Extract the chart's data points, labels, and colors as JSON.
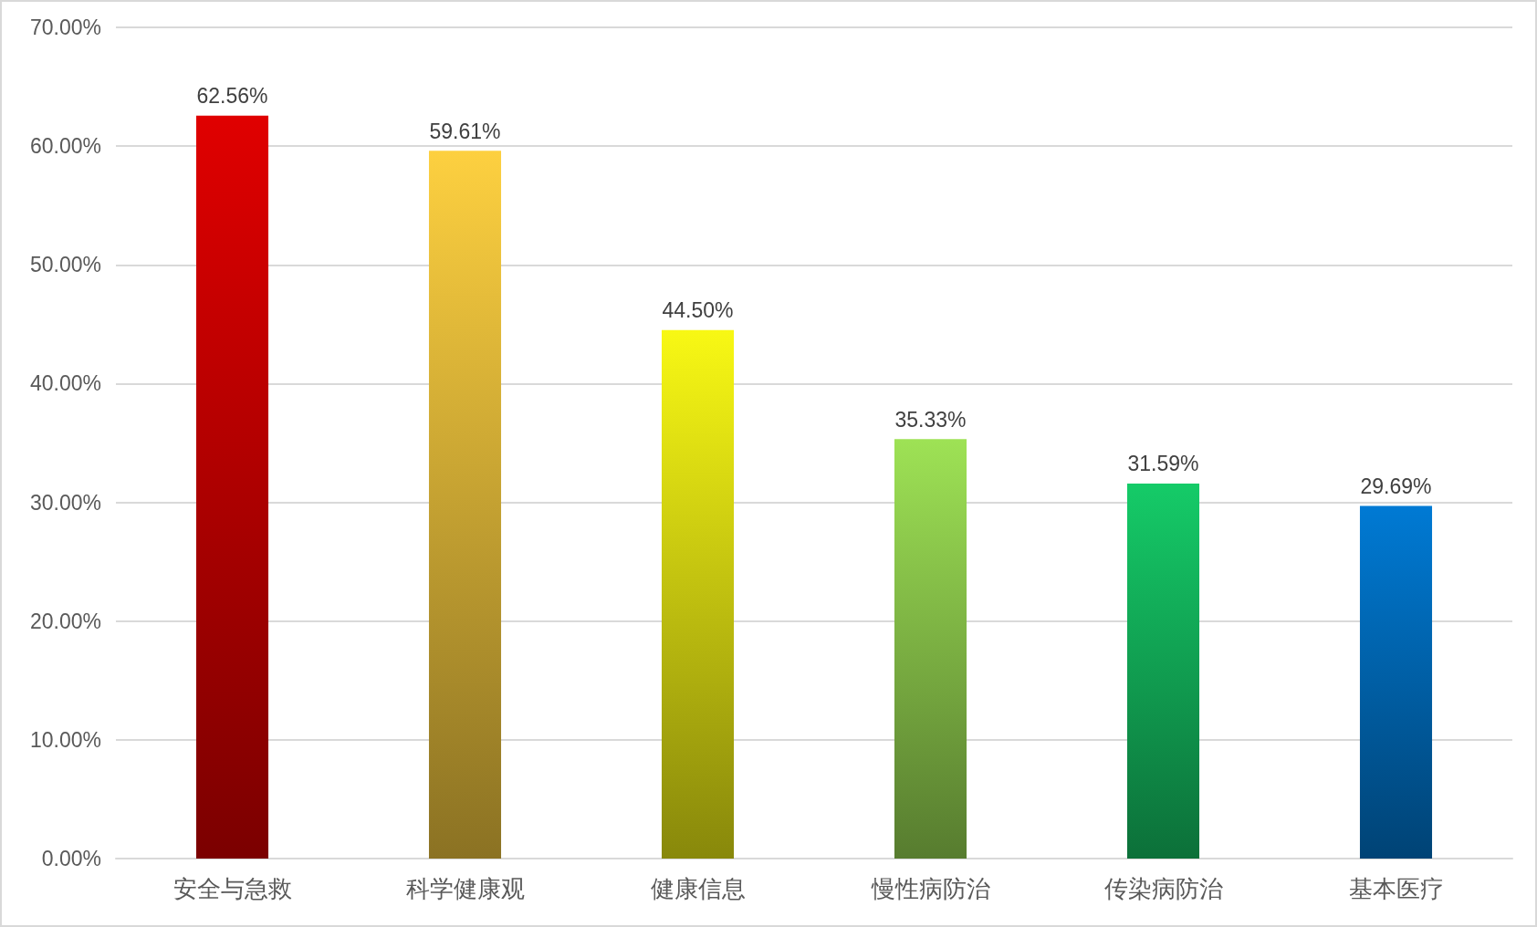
{
  "chart_data": {
    "type": "bar",
    "categories": [
      "安全与急救",
      "科学健康观",
      "健康信息",
      "慢性病防治",
      "传染病防治",
      "基本医疗"
    ],
    "values": [
      62.56,
      59.61,
      44.5,
      35.33,
      31.59,
      29.69
    ],
    "value_labels": [
      "62.56%",
      "59.61%",
      "44.50%",
      "35.33%",
      "31.59%",
      "29.69%"
    ],
    "colors": [
      "#e00000",
      "#fdd040",
      "#f8f814",
      "#9ee255",
      "#15cb68",
      "#007ad4"
    ],
    "ylim": [
      0,
      70
    ],
    "yticks": [
      {
        "value": 0,
        "label": "0.00%"
      },
      {
        "value": 10,
        "label": "10.00%"
      },
      {
        "value": 20,
        "label": "20.00%"
      },
      {
        "value": 30,
        "label": "30.00%"
      },
      {
        "value": 40,
        "label": "40.00%"
      },
      {
        "value": 50,
        "label": "50.00%"
      },
      {
        "value": 60,
        "label": "60.00%"
      },
      {
        "value": 70,
        "label": "70.00%"
      }
    ],
    "grid": "y"
  }
}
